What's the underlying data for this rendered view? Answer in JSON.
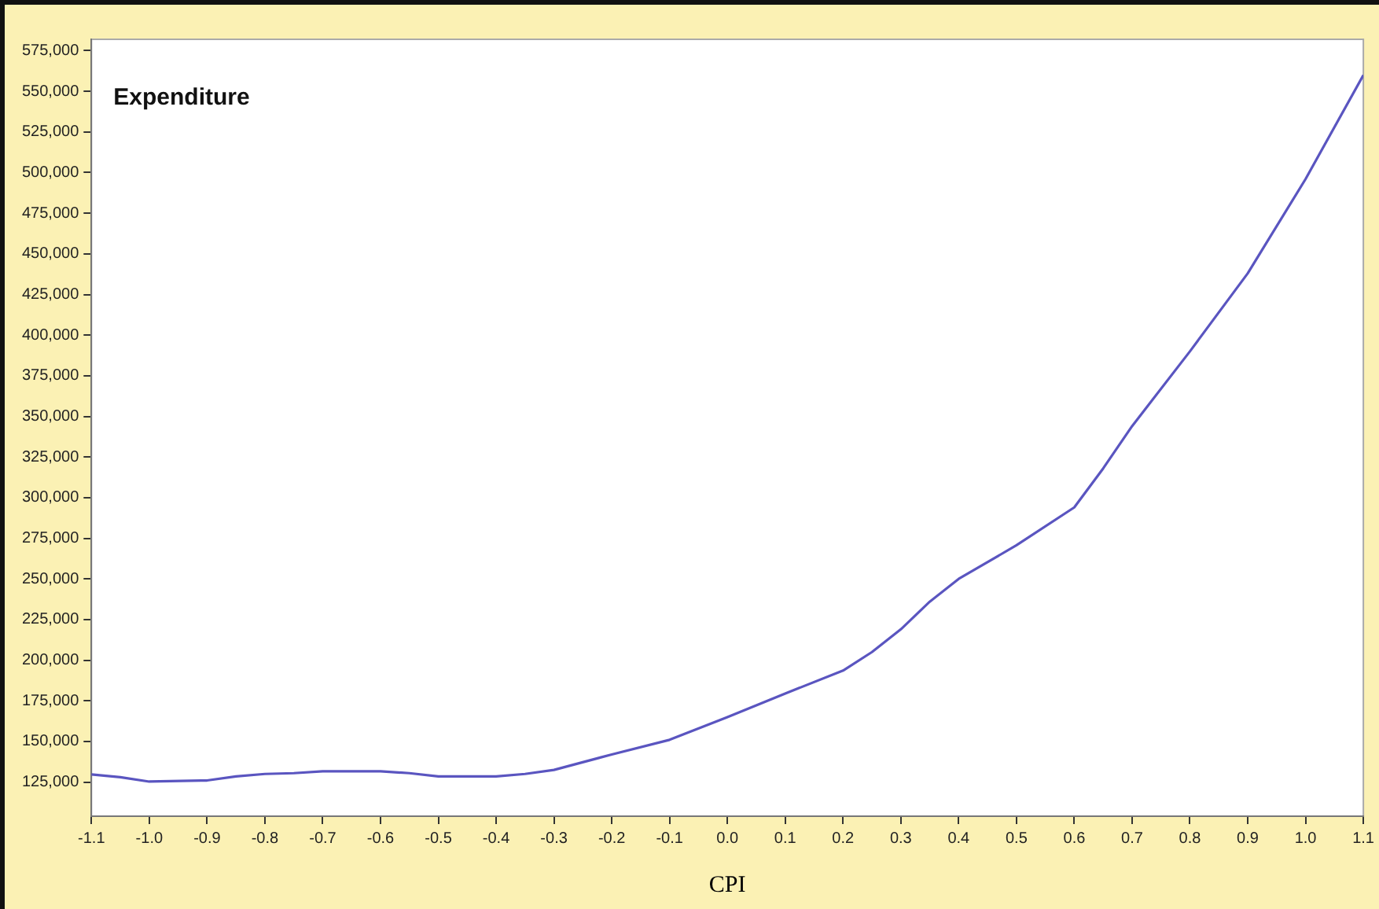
{
  "chart_data": {
    "type": "line",
    "title": "Expenditure",
    "xlabel": "CPI",
    "x": [
      -1.1,
      -1.05,
      -1.0,
      -0.9,
      -0.85,
      -0.8,
      -0.75,
      -0.7,
      -0.6,
      -0.55,
      -0.5,
      -0.4,
      -0.35,
      -0.3,
      -0.2,
      -0.1,
      0.0,
      0.1,
      0.2,
      0.25,
      0.3,
      0.35,
      0.4,
      0.5,
      0.6,
      0.65,
      0.7,
      0.8,
      0.9,
      1.0,
      1.1
    ],
    "series": [
      {
        "color": "#5a55c0",
        "values": [
          129700,
          128000,
          125300,
          126000,
          128500,
          130000,
          130500,
          131600,
          131600,
          130500,
          128500,
          128500,
          130000,
          132500,
          142000,
          151000,
          165000,
          179500,
          193600,
          205000,
          219000,
          236000,
          250000,
          270700,
          294000,
          318000,
          344000,
          390000,
          438000,
          496000,
          560000
        ]
      }
    ],
    "xlim": [
      -1.1,
      1.1
    ],
    "ylim": [
      104000,
      582000
    ],
    "xticks": [
      {
        "value": -1.1,
        "label": "-1.1"
      },
      {
        "value": -1.0,
        "label": "-1.0"
      },
      {
        "value": -0.9,
        "label": "-0.9"
      },
      {
        "value": -0.8,
        "label": "-0.8"
      },
      {
        "value": -0.7,
        "label": "-0.7"
      },
      {
        "value": -0.6,
        "label": "-0.6"
      },
      {
        "value": -0.5,
        "label": "-0.5"
      },
      {
        "value": -0.4,
        "label": "-0.4"
      },
      {
        "value": -0.3,
        "label": "-0.3"
      },
      {
        "value": -0.2,
        "label": "-0.2"
      },
      {
        "value": -0.1,
        "label": "-0.1"
      },
      {
        "value": 0.0,
        "label": "0.0"
      },
      {
        "value": 0.1,
        "label": "0.1"
      },
      {
        "value": 0.2,
        "label": "0.2"
      },
      {
        "value": 0.3,
        "label": "0.3"
      },
      {
        "value": 0.4,
        "label": "0.4"
      },
      {
        "value": 0.5,
        "label": "0.5"
      },
      {
        "value": 0.6,
        "label": "0.6"
      },
      {
        "value": 0.7,
        "label": "0.7"
      },
      {
        "value": 0.8,
        "label": "0.8"
      },
      {
        "value": 0.9,
        "label": "0.9"
      },
      {
        "value": 1.0,
        "label": "1.0"
      },
      {
        "value": 1.1,
        "label": "1.1"
      }
    ],
    "yticks": [
      {
        "value": 125000,
        "label": "125,000"
      },
      {
        "value": 150000,
        "label": "150,000"
      },
      {
        "value": 175000,
        "label": "175,000"
      },
      {
        "value": 200000,
        "label": "200,000"
      },
      {
        "value": 225000,
        "label": "225,000"
      },
      {
        "value": 250000,
        "label": "250,000"
      },
      {
        "value": 275000,
        "label": "275,000"
      },
      {
        "value": 300000,
        "label": "300,000"
      },
      {
        "value": 325000,
        "label": "325,000"
      },
      {
        "value": 350000,
        "label": "350,000"
      },
      {
        "value": 375000,
        "label": "375,000"
      },
      {
        "value": 400000,
        "label": "400,000"
      },
      {
        "value": 425000,
        "label": "425,000"
      },
      {
        "value": 450000,
        "label": "450,000"
      },
      {
        "value": 475000,
        "label": "475,000"
      },
      {
        "value": 500000,
        "label": "500,000"
      },
      {
        "value": 525000,
        "label": "525,000"
      },
      {
        "value": 550000,
        "label": "550,000"
      },
      {
        "value": 575000,
        "label": "575,000"
      }
    ],
    "grid": false,
    "legend": false,
    "marker": "none",
    "line_style": "solid"
  }
}
